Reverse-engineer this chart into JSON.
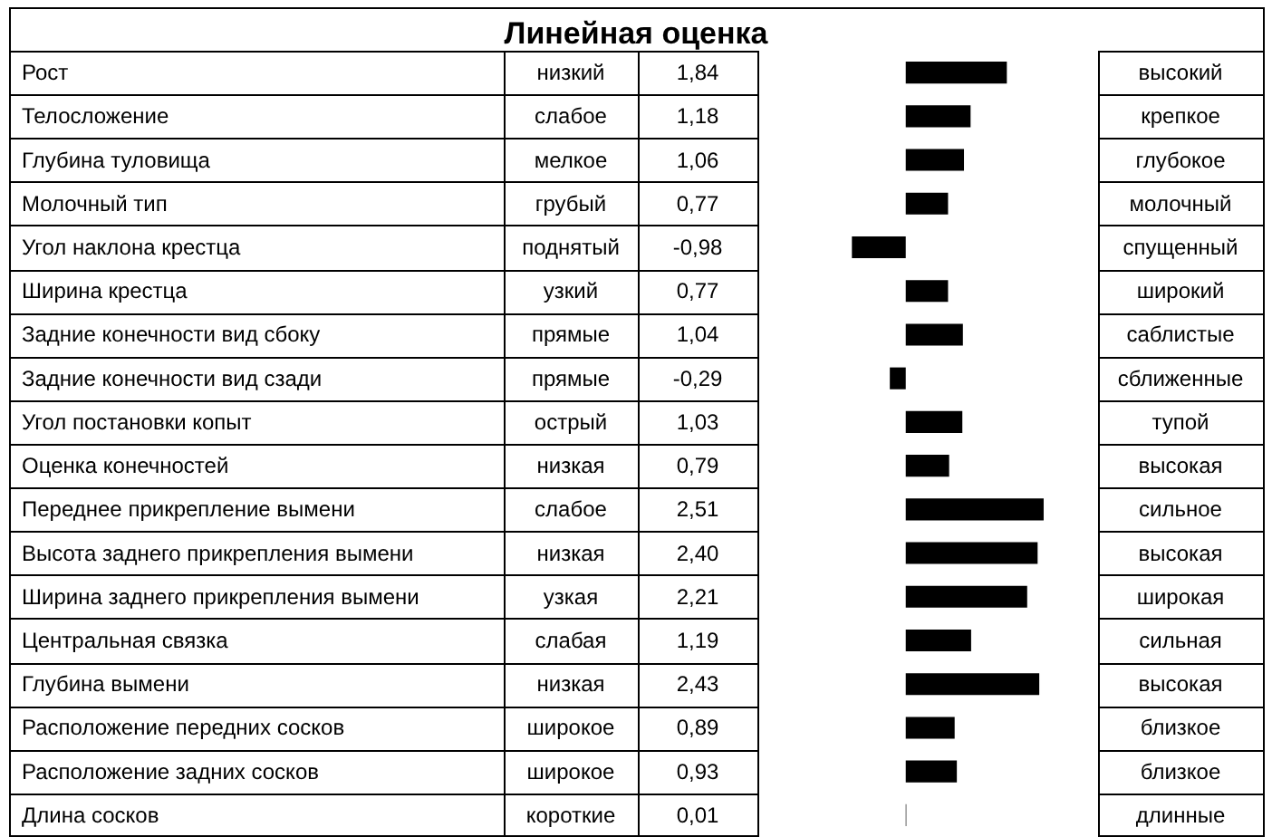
{
  "chart_data": {
    "type": "bar",
    "orientation": "horizontal",
    "title": "Линейная оценка",
    "categories": [
      "Рост",
      "Телосложение",
      "Глубина туловища",
      "Молочный тип",
      "Угол наклона крестца",
      "Ширина крестца",
      "Задние конечности вид сбоку",
      "Задние конечности вид сзади",
      "Угол постановки копыт",
      "Оценка конечностей",
      "Переднее прикрепление вымени",
      "Высота заднего прикрепления вымени",
      "Ширина заднего прикрепления вымени",
      "Центральная связка",
      "Глубина вымени",
      "Расположение передних сосков",
      "Расположение задних сосков",
      "Длина сосков"
    ],
    "series": [
      {
        "color": "#000000",
        "values": [
          1.84,
          1.18,
          1.06,
          0.77,
          -0.98,
          0.77,
          1.04,
          -0.29,
          1.03,
          0.79,
          2.51,
          2.4,
          2.21,
          1.19,
          2.43,
          0.89,
          0.93,
          0.01
        ],
        "value_labels": [
          "1,84",
          "1,18",
          "1,06",
          "0,77",
          "-0,98",
          "0,77",
          "1,04",
          "-0,29",
          "1,03",
          "0,79",
          "2,51",
          "2,40",
          "2,21",
          "1,19",
          "2,43",
          "0,89",
          "0,93",
          "0,01"
        ]
      }
    ],
    "xlim": [
      -2.7,
      3.5
    ],
    "tick_labels": "y",
    "annotations": [
      "низкий",
      "высокий",
      "слабое",
      "крепкое",
      "мелкое",
      "глубокое",
      "грубый",
      "молочный",
      "поднятый",
      "спущенный",
      "узкий",
      "широкий",
      "прямые",
      "саблистые",
      "прямые",
      "сближенные",
      "острый",
      "тупой",
      "низкая",
      "высокая",
      "слабое",
      "сильное",
      "низкая",
      "высокая",
      "узкая",
      "широкая",
      "слабая",
      "сильная",
      "низкая",
      "высокая",
      "широкое",
      "близкое",
      "широкое",
      "близкое",
      "короткие",
      "длинные"
    ]
  }
}
